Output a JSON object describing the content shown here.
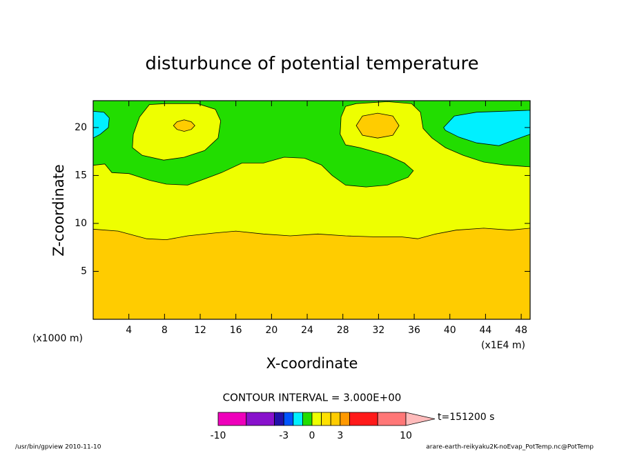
{
  "chart_data": {
    "type": "contour",
    "title": "disturbunce of potential temperature",
    "xlabel": "X-coordinate",
    "ylabel": "Z-coordinate",
    "xunit": "(x1000 m)",
    "x2unit": "(x1E4 m)",
    "xlim": [
      0,
      49
    ],
    "ylim": [
      0,
      22.8
    ],
    "xticks": [
      4,
      8,
      12,
      16,
      20,
      24,
      28,
      32,
      36,
      40,
      44,
      48
    ],
    "yticks": [
      5,
      10,
      15,
      20
    ],
    "contour_interval": "CONTOUR INTERVAL = 3.000E+00",
    "time_label": "t=151200 s",
    "footer_left": "/usr/bin/gpview  2010-11-10",
    "footer_right": "arare-earth-reikyaku2K-noEvap_PotTemp.nc@PotTemp",
    "colorbar": {
      "levels": [
        -10,
        -7,
        -4,
        -3,
        -2,
        -1,
        0,
        1,
        2,
        3,
        4,
        7,
        10
      ],
      "colors": [
        "#ee00bb",
        "#8811cc",
        "#2211aa",
        "#0055ff",
        "#00f0ff",
        "#22dd00",
        "#eeff00",
        "#ffe000",
        "#ffcc00",
        "#ff9900",
        "#ff1a1a",
        "#ff7777",
        "#ffbbbb"
      ],
      "ticks": [
        -10,
        -3,
        0,
        3,
        10
      ]
    },
    "regions": [
      {
        "level": -1,
        "x": [
          0,
          49,
          49,
          0
        ],
        "z": [
          0,
          0,
          22.8,
          22.8
        ]
      },
      {
        "level": -2,
        "x": [
          0,
          1.2,
          1.8,
          1.7,
          0.8,
          0
        ],
        "z": [
          21.7,
          21.6,
          21,
          20,
          19.3,
          18.9
        ]
      },
      {
        "level": -2,
        "x": [
          39.3,
          40.5,
          43,
          46,
          49,
          49,
          47.5,
          45.5,
          43,
          41,
          39.5
        ],
        "z": [
          20,
          21.2,
          21.6,
          21.7,
          21.8,
          19.3,
          18.8,
          18.1,
          18.4,
          19,
          19.7
        ]
      },
      {
        "level": 0,
        "x": [
          0,
          1.3,
          2.1,
          4.0,
          6.3,
          8.2,
          10.6,
          12.1,
          14.4,
          16.7,
          19.1,
          21.4,
          23.7,
          25.6,
          26.8,
          28.3,
          30.6,
          33.0,
          35.3,
          35.9,
          34.9,
          33.0,
          29.9,
          28.3,
          27.7,
          27.8,
          28.3,
          29.5,
          33.0,
          35.7,
          36.7,
          37.0,
          38.0,
          39.5,
          41.5,
          43.8,
          46.1,
          49,
          49,
          0
        ],
        "z": [
          16.06,
          16.2,
          15.3,
          15.2,
          14.5,
          14.1,
          14.0,
          14.5,
          15.3,
          16.3,
          16.3,
          16.9,
          16.8,
          16.1,
          15.0,
          14.0,
          13.8,
          14.0,
          14.8,
          15.5,
          16.3,
          17.1,
          17.9,
          18.2,
          19.3,
          21.1,
          22.2,
          22.5,
          22.7,
          22.5,
          21.6,
          19.9,
          18.9,
          17.9,
          17.1,
          16.4,
          16.1,
          15.9,
          0,
          0
        ]
      },
      {
        "level": 0,
        "x": [
          6.3,
          5.2,
          4.5,
          4.4,
          5.5,
          7.9,
          10.2,
          12.5,
          14.0,
          14.3,
          13.7,
          11.7,
          8.2
        ],
        "z": [
          22.4,
          21.1,
          19.3,
          17.9,
          17.1,
          16.6,
          16.9,
          17.6,
          18.9,
          20.7,
          21.9,
          22.5,
          22.5
        ]
      },
      {
        "level": 2,
        "x": [
          0,
          2.8,
          6.0,
          8.2,
          10.6,
          13.6,
          16.0,
          19.1,
          22.1,
          25.2,
          28.3,
          31.4,
          34.5,
          36.4,
          38.4,
          40.7,
          43.8,
          46.8,
          49,
          49,
          0
        ],
        "z": [
          9.4,
          9.2,
          8.4,
          8.3,
          8.7,
          9.0,
          9.2,
          8.9,
          8.7,
          8.9,
          8.7,
          8.6,
          8.6,
          8.4,
          8.9,
          9.3,
          9.5,
          9.3,
          9.5,
          0,
          0
        ]
      },
      {
        "level": 2,
        "x": [
          9.0,
          9.4,
          10.2,
          11.0,
          11.4,
          11.0,
          10.2,
          9.4
        ],
        "z": [
          20.2,
          20.6,
          20.8,
          20.6,
          20.2,
          19.8,
          19.6,
          19.8
        ]
      },
      {
        "level": 2,
        "x": [
          29.5,
          30.2,
          31.9,
          33.6,
          34.3,
          33.6,
          31.9,
          30.2
        ],
        "z": [
          20.2,
          21.2,
          21.5,
          21.2,
          20.2,
          19.2,
          18.9,
          19.2
        ]
      }
    ]
  }
}
